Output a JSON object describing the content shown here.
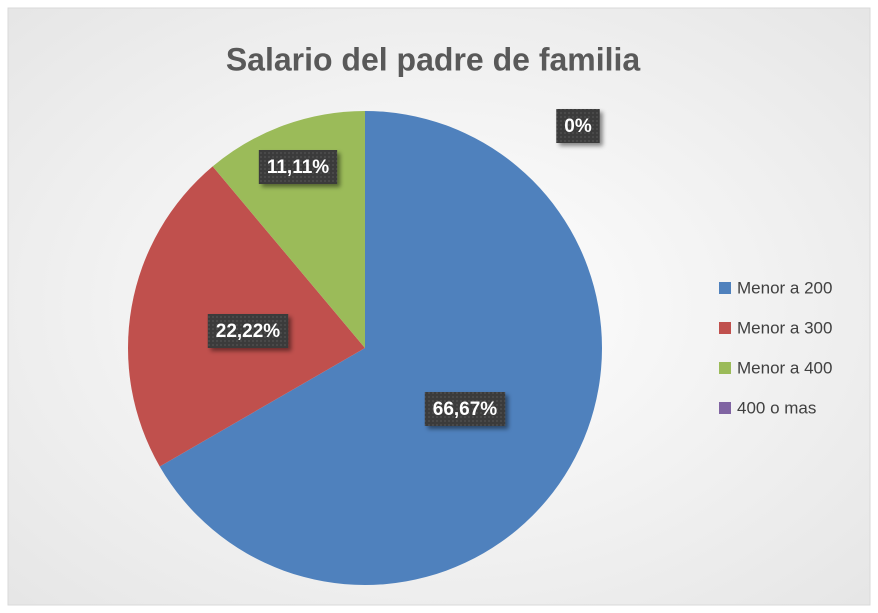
{
  "chart_data": {
    "type": "pie",
    "title": "Salario del padre de familia",
    "categories": [
      "Menor a 200",
      "Menor a 300",
      "Menor a 400",
      "400 o mas"
    ],
    "values": [
      66.67,
      22.22,
      11.11,
      0
    ],
    "value_labels": [
      "66,67%",
      "22,22%",
      "11,11%",
      "0%"
    ],
    "colors": [
      "#4f81bd",
      "#c0504d",
      "#9bbb59",
      "#8064a2"
    ],
    "legend": "right"
  }
}
